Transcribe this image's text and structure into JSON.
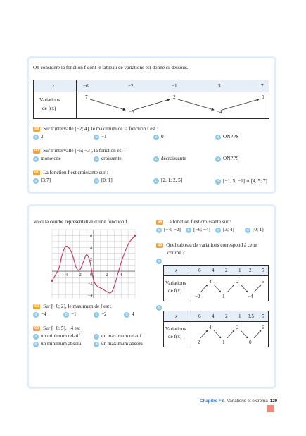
{
  "intro": "On considère la fonction f dont le tableau de variations est donné ci-dessous.",
  "table1": {
    "x_label": "x",
    "row_label_1": "Variations",
    "row_label_2": "de f(x)",
    "x_values": [
      "−6",
      "−2",
      "−1",
      "3",
      "7"
    ],
    "f_values": [
      "7",
      "−5",
      "2",
      "−4",
      "0"
    ]
  },
  "q58": {
    "num": "58",
    "text": "Sur l’intervalle [−2; 4], le maximum de la fonction f est :",
    "options": [
      {
        "letter": "a",
        "text": "2"
      },
      {
        "letter": "b",
        "text": "−1"
      },
      {
        "letter": "c",
        "text": "0"
      },
      {
        "letter": "d",
        "text": "ONPPS"
      }
    ]
  },
  "q60": {
    "num": "60",
    "text": "Sur l’intervalle [−5; −3], la fonction est :",
    "options": [
      {
        "letter": "a",
        "text": "monotone"
      },
      {
        "letter": "b",
        "text": "croissante"
      },
      {
        "letter": "c",
        "text": "décroissante"
      },
      {
        "letter": "d",
        "text": "ONPPS"
      }
    ]
  },
  "q61": {
    "num": "61",
    "text": "La fonction f est croissante sur :",
    "options": [
      {
        "letter": "a",
        "text": "[3;7]"
      },
      {
        "letter": "b",
        "text": "[0; 1]"
      },
      {
        "letter": "c",
        "text": "[2, 1; 2, 5]"
      },
      {
        "letter": "d",
        "text": "[−1, 5; −1] ∪ [4, 5; 7]"
      }
    ]
  },
  "graph_intro": "Voici la courbe représentative d’une fonction f.",
  "graph": {
    "x_ticks": [
      "−4",
      "−2",
      "0",
      "2",
      "4"
    ],
    "y_ticks": [
      "6",
      "4",
      "2",
      "−2",
      "−4"
    ],
    "chart_data": {
      "type": "line",
      "x": [
        -6,
        -5,
        -4.6,
        -4,
        -3.2,
        -2.5,
        -2,
        -1.5,
        -1,
        -0.5,
        0,
        0.5,
        1,
        2,
        2.5,
        3,
        4,
        5,
        6
      ],
      "y": [
        -1.6,
        0.5,
        2.5,
        4.2,
        3.2,
        0.6,
        0.2,
        1.5,
        2.8,
        1.5,
        -1.5,
        -2.5,
        -2.8,
        -3.5,
        -3.6,
        -2.5,
        1.5,
        4.5,
        6
      ],
      "xlim": [
        -6,
        6
      ],
      "ylim": [
        -4.5,
        7
      ]
    }
  },
  "q62": {
    "num": "62",
    "text": "Sur [−6; 2], le maximum de f est :",
    "options": [
      {
        "letter": "a",
        "text": "−4"
      },
      {
        "letter": "b",
        "text": "−1"
      },
      {
        "letter": "c",
        "text": "−2"
      },
      {
        "letter": "d",
        "text": "4"
      }
    ]
  },
  "q63": {
    "num": "63",
    "text": "Sur [−6; 5], −4 est :",
    "options": [
      {
        "letter": "a",
        "text": "un minimum relatif"
      },
      {
        "letter": "c",
        "text": "un maximum relatif"
      },
      {
        "letter": "b",
        "text": "un minimum absolu"
      },
      {
        "letter": "d",
        "text": "un maximum absolu"
      }
    ]
  },
  "q64": {
    "num": "64",
    "text": "La fonction f est croissante sur :",
    "options": [
      {
        "letter": "a",
        "text": "[−4; −2]"
      },
      {
        "letter": "b",
        "text": "[−6; −4]"
      },
      {
        "letter": "c",
        "text": "[3; 4]"
      },
      {
        "letter": "d",
        "text": "[0; 1]"
      }
    ]
  },
  "q65": {
    "num": "65",
    "text_line1": "Quel tableau de variations correspond à cette",
    "text_line2": "courbe ?"
  },
  "tableA": {
    "letter": "a",
    "x_label": "x",
    "row_label_1": "Variations",
    "row_label_2": "de f(x)",
    "x_values": [
      "−6",
      "−4",
      "−2",
      "−1",
      "2",
      "5"
    ],
    "f_values": [
      "−2",
      "4",
      "1",
      "2",
      "−4",
      "6"
    ]
  },
  "tableB": {
    "letter": "b",
    "x_label": "x",
    "row_label_1": "Variations",
    "row_label_2": "de f(x)",
    "x_values": [
      "−6",
      "−4",
      "−2",
      "−1",
      "3,5",
      "5"
    ],
    "f_values": [
      "−2",
      "4",
      "1",
      "2",
      "0",
      "6"
    ]
  },
  "footer": {
    "chapter": "Chapitre F3.",
    "title": "Variations et extrema",
    "page": "129"
  },
  "colors": {
    "card_border": "#e2edf7",
    "badge": "#f1a23c",
    "circle": "#8fc8e6",
    "curve": "#c8325a",
    "accent": "#3a7fb5"
  }
}
